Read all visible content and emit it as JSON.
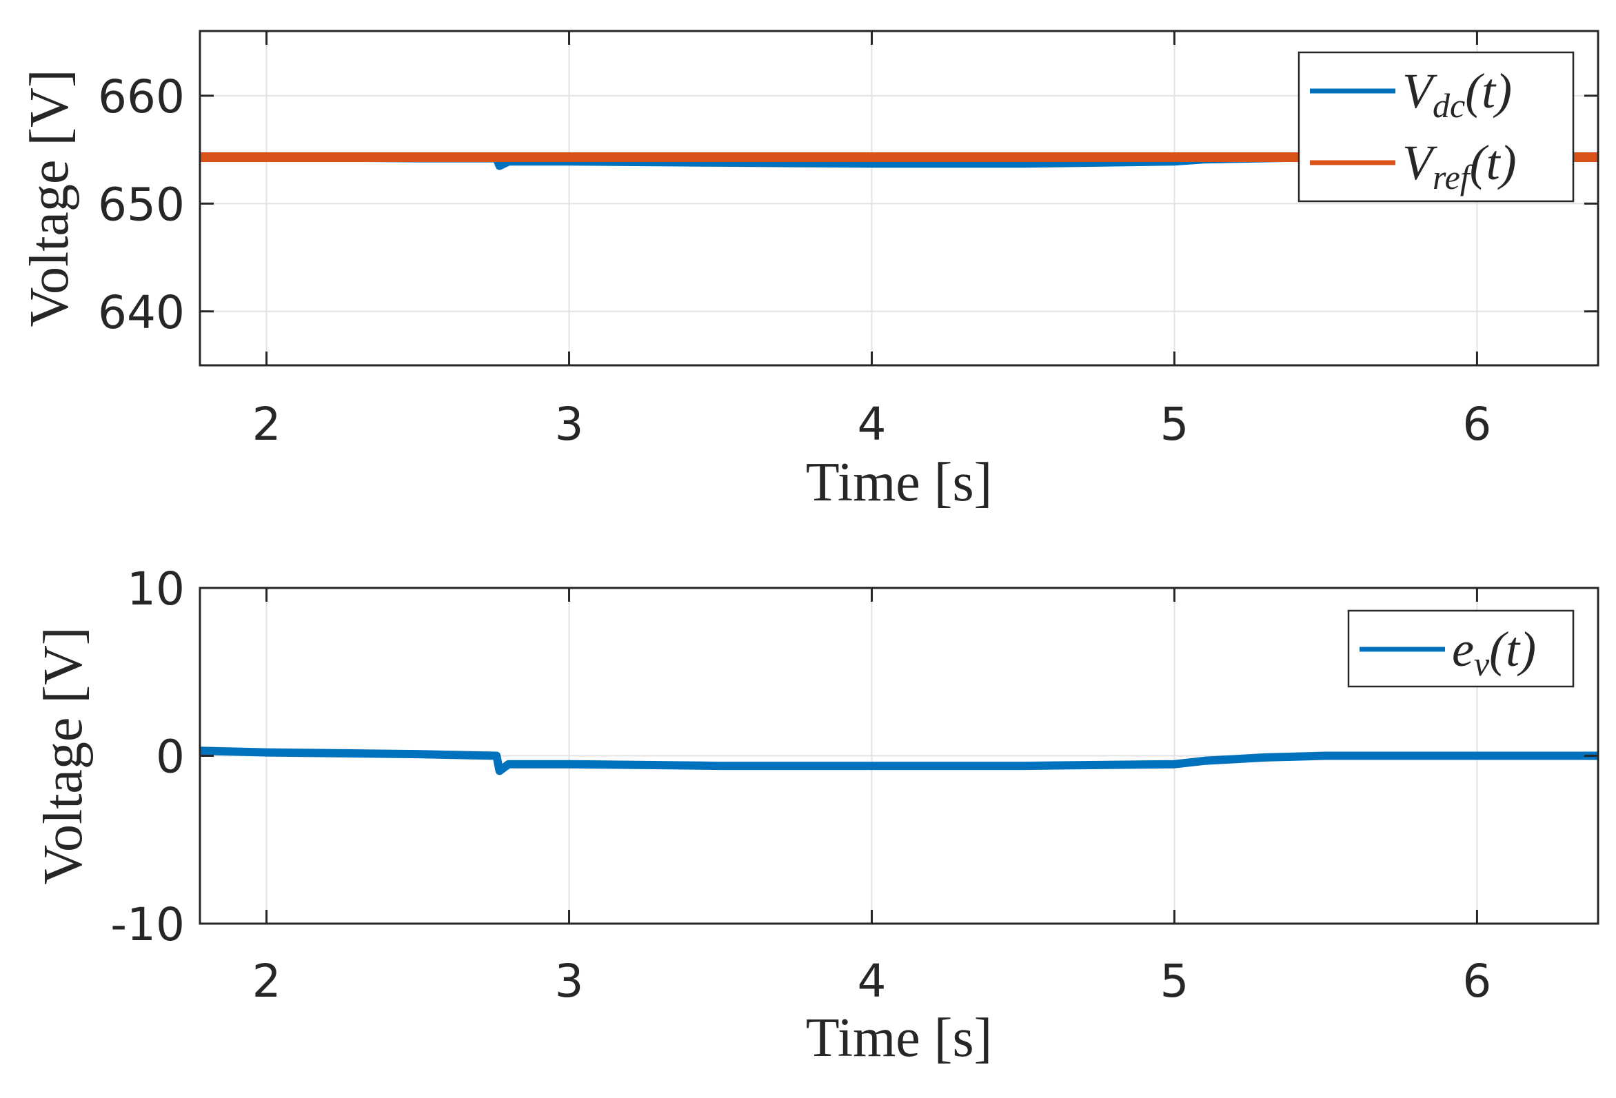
{
  "chart_data": [
    {
      "type": "line",
      "title": "",
      "xlabel": "Time [s]",
      "ylabel": "Voltage [V]",
      "xlim": [
        1.78,
        6.4
      ],
      "ylim": [
        635,
        666
      ],
      "xticks": [
        2,
        3,
        4,
        5,
        6
      ],
      "yticks": [
        640,
        650,
        660
      ],
      "grid": true,
      "legend_position": "top-right",
      "series": [
        {
          "name": "V_dc(t)",
          "legend_main": "V",
          "legend_sub": "dc",
          "legend_tail": "(t)",
          "color": "#0072BD",
          "x": [
            1.78,
            2.0,
            2.5,
            2.76,
            2.77,
            2.8,
            3.0,
            3.5,
            4.0,
            4.5,
            5.0,
            5.1,
            5.5,
            6.0,
            6.4
          ],
          "y": [
            654.3,
            654.3,
            654.2,
            654.2,
            653.5,
            653.9,
            653.9,
            653.8,
            653.7,
            653.7,
            653.9,
            654.1,
            654.3,
            654.3,
            654.3
          ]
        },
        {
          "name": "V_ref(t)",
          "legend_main": "V",
          "legend_sub": "ref",
          "legend_tail": "(t)",
          "color": "#D95319",
          "x": [
            1.78,
            6.4
          ],
          "y": [
            654.3,
            654.3
          ]
        }
      ]
    },
    {
      "type": "line",
      "title": "",
      "xlabel": "Time [s]",
      "ylabel": "Voltage [V]",
      "xlim": [
        1.78,
        6.4
      ],
      "ylim": [
        -10,
        10
      ],
      "xticks": [
        2,
        3,
        4,
        5,
        6
      ],
      "yticks": [
        -10,
        0,
        10
      ],
      "grid": true,
      "legend_position": "top-right",
      "series": [
        {
          "name": "e_v(t)",
          "legend_main": "e",
          "legend_sub": "v",
          "legend_tail": "(t)",
          "color": "#0072BD",
          "x": [
            1.78,
            2.0,
            2.5,
            2.76,
            2.77,
            2.8,
            3.0,
            3.5,
            4.0,
            4.5,
            5.0,
            5.1,
            5.3,
            5.5,
            6.0,
            6.4
          ],
          "y": [
            0.3,
            0.2,
            0.1,
            0.0,
            -0.9,
            -0.5,
            -0.5,
            -0.6,
            -0.6,
            -0.6,
            -0.5,
            -0.3,
            -0.1,
            0.0,
            0.0,
            0.0
          ]
        }
      ]
    }
  ]
}
